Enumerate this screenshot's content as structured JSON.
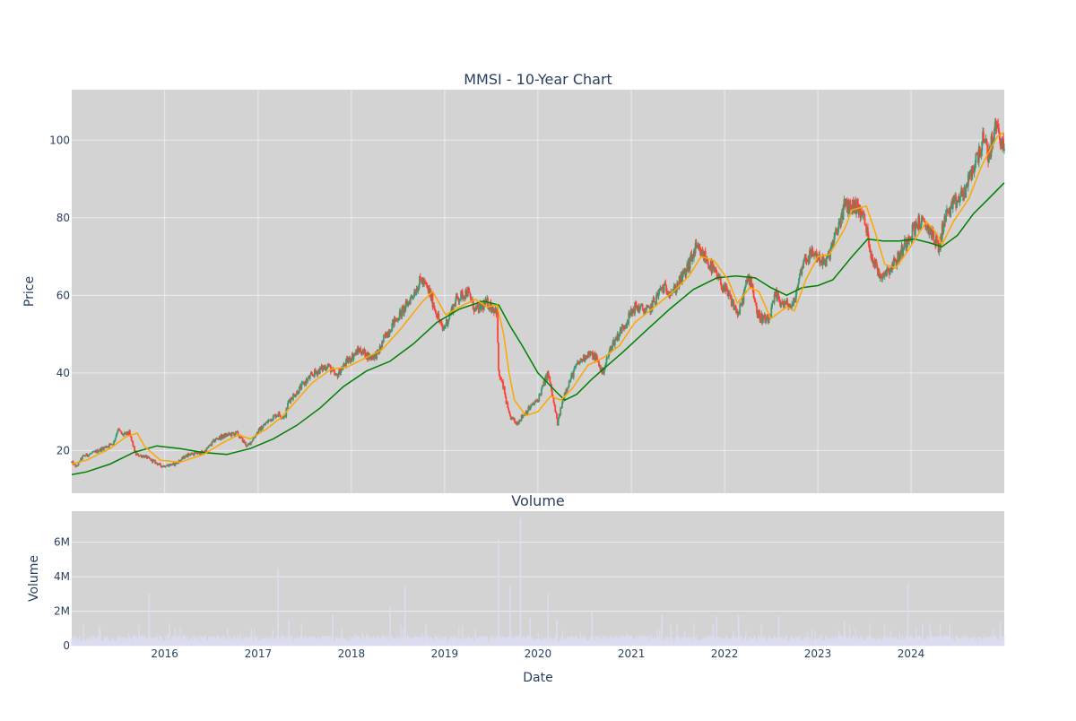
{
  "colors": {
    "plot_bg": "#d3d3d3",
    "grid": "#eaeaf2",
    "increasing": "#3d9970",
    "decreasing": "#ff4136",
    "ma_short": "#ffa500",
    "ma_long": "#008000",
    "volume": "#dcdcf0",
    "text": "#2a3f5f"
  },
  "chart_data": [
    {
      "type": "candlestick",
      "title": "MMSI - 10-Year Chart",
      "ylabel": "Price",
      "xlim": [
        "2015-01-02",
        "2024-12-31"
      ],
      "ylim": [
        9,
        113
      ],
      "ytick_values": [
        20,
        40,
        60,
        80,
        100
      ],
      "ytick_labels": [
        "20",
        "40",
        "60",
        "80",
        "100"
      ],
      "xtick_values": [
        "2016-01-01",
        "2017-01-01",
        "2018-01-01",
        "2019-01-01",
        "2020-01-01",
        "2021-01-01",
        "2022-01-01",
        "2023-01-01",
        "2024-01-01"
      ],
      "grid": true,
      "legend": "none",
      "price_path": [
        [
          "2015-01-02",
          17
        ],
        [
          "2015-01-20",
          15.8
        ],
        [
          "2015-02-15",
          18.5
        ],
        [
          "2015-04-01",
          19.5
        ],
        [
          "2015-05-01",
          20.5
        ],
        [
          "2015-06-15",
          22
        ],
        [
          "2015-07-01",
          25.5
        ],
        [
          "2015-07-20",
          24
        ],
        [
          "2015-08-15",
          24.5
        ],
        [
          "2015-09-10",
          19
        ],
        [
          "2015-10-15",
          18.5
        ],
        [
          "2015-12-20",
          16
        ],
        [
          "2016-02-10",
          16.5
        ],
        [
          "2016-04-01",
          19
        ],
        [
          "2016-06-01",
          19.5
        ],
        [
          "2016-07-20",
          23
        ],
        [
          "2016-09-01",
          24
        ],
        [
          "2016-10-10",
          24.5
        ],
        [
          "2016-11-20",
          21
        ],
        [
          "2017-01-01",
          25
        ],
        [
          "2017-02-15",
          28
        ],
        [
          "2017-03-20",
          29.5
        ],
        [
          "2017-04-15",
          28.5
        ],
        [
          "2017-05-01",
          33
        ],
        [
          "2017-06-01",
          35
        ],
        [
          "2017-07-01",
          37.5
        ],
        [
          "2017-08-10",
          40
        ],
        [
          "2017-10-01",
          42
        ],
        [
          "2017-11-01",
          39
        ],
        [
          "2017-12-15",
          43
        ],
        [
          "2018-02-01",
          46
        ],
        [
          "2018-03-15",
          44
        ],
        [
          "2018-04-15",
          45
        ],
        [
          "2018-05-10",
          49
        ],
        [
          "2018-06-15",
          53
        ],
        [
          "2018-08-01",
          57
        ],
        [
          "2018-10-01",
          64
        ],
        [
          "2018-11-01",
          61
        ],
        [
          "2018-12-24",
          51
        ],
        [
          "2019-01-15",
          54
        ],
        [
          "2019-02-15",
          59
        ],
        [
          "2019-04-01",
          61
        ],
        [
          "2019-05-01",
          56
        ],
        [
          "2019-06-15",
          58
        ],
        [
          "2019-07-25",
          56
        ],
        [
          "2019-07-31",
          40
        ],
        [
          "2019-08-20",
          36
        ],
        [
          "2019-09-10",
          29
        ],
        [
          "2019-10-10",
          27
        ],
        [
          "2019-11-15",
          30
        ],
        [
          "2019-12-31",
          33
        ],
        [
          "2020-02-10",
          40
        ],
        [
          "2020-03-18",
          27
        ],
        [
          "2020-04-15",
          35
        ],
        [
          "2020-06-01",
          42
        ],
        [
          "2020-07-15",
          45
        ],
        [
          "2020-08-15",
          44
        ],
        [
          "2020-09-10",
          40
        ],
        [
          "2020-10-15",
          47
        ],
        [
          "2020-12-01",
          52
        ],
        [
          "2021-01-15",
          57
        ],
        [
          "2021-03-10",
          56
        ],
        [
          "2021-05-01",
          62
        ],
        [
          "2021-06-15",
          61
        ],
        [
          "2021-08-01",
          66
        ],
        [
          "2021-09-10",
          72
        ],
        [
          "2021-10-15",
          70
        ],
        [
          "2021-11-30",
          65
        ],
        [
          "2022-01-15",
          60
        ],
        [
          "2022-02-25",
          55
        ],
        [
          "2022-03-31",
          64
        ],
        [
          "2022-04-15",
          64
        ],
        [
          "2022-05-10",
          55
        ],
        [
          "2022-06-20",
          53
        ],
        [
          "2022-07-20",
          60
        ],
        [
          "2022-08-15",
          58
        ],
        [
          "2022-09-25",
          57
        ],
        [
          "2022-11-05",
          69
        ],
        [
          "2022-12-15",
          71
        ],
        [
          "2023-01-31",
          68
        ],
        [
          "2023-03-10",
          75
        ],
        [
          "2023-04-15",
          83
        ],
        [
          "2023-06-01",
          83
        ],
        [
          "2023-06-30",
          80
        ],
        [
          "2023-08-01",
          70
        ],
        [
          "2023-09-01",
          65
        ],
        [
          "2023-10-10",
          67
        ],
        [
          "2023-11-15",
          70
        ],
        [
          "2023-12-20",
          75
        ],
        [
          "2024-02-01",
          79
        ],
        [
          "2024-03-15",
          77
        ],
        [
          "2024-04-20",
          72
        ],
        [
          "2024-05-10",
          80
        ],
        [
          "2024-06-15",
          83
        ],
        [
          "2024-07-31",
          87
        ],
        [
          "2024-09-01",
          93
        ],
        [
          "2024-10-10",
          100
        ],
        [
          "2024-10-31",
          96
        ],
        [
          "2024-11-30",
          104
        ],
        [
          "2024-12-15",
          101
        ],
        [
          "2024-12-31",
          97
        ]
      ],
      "ma_short_path": [
        [
          "2015-01-02",
          16.5
        ],
        [
          "2015-03-01",
          17.5
        ],
        [
          "2015-06-01",
          20.5
        ],
        [
          "2015-08-01",
          23.5
        ],
        [
          "2015-09-15",
          24.5
        ],
        [
          "2015-10-15",
          21
        ],
        [
          "2015-12-15",
          17.5
        ],
        [
          "2016-03-01",
          17
        ],
        [
          "2016-06-01",
          19
        ],
        [
          "2016-08-15",
          22
        ],
        [
          "2016-10-15",
          24
        ],
        [
          "2016-12-01",
          23
        ],
        [
          "2017-02-01",
          25.5
        ],
        [
          "2017-04-01",
          28.5
        ],
        [
          "2017-06-01",
          33
        ],
        [
          "2017-08-01",
          37.5
        ],
        [
          "2017-10-15",
          41
        ],
        [
          "2017-12-15",
          41.5
        ],
        [
          "2018-03-01",
          44
        ],
        [
          "2018-05-01",
          46
        ],
        [
          "2018-07-15",
          51.5
        ],
        [
          "2018-10-01",
          58
        ],
        [
          "2018-11-15",
          61
        ],
        [
          "2019-01-05",
          55
        ],
        [
          "2019-03-01",
          57
        ],
        [
          "2019-05-01",
          59
        ],
        [
          "2019-06-15",
          57
        ],
        [
          "2019-07-25",
          57.5
        ],
        [
          "2019-08-20",
          50
        ],
        [
          "2019-09-10",
          40
        ],
        [
          "2019-10-01",
          33
        ],
        [
          "2019-11-15",
          29
        ],
        [
          "2020-01-01",
          30
        ],
        [
          "2020-02-20",
          34
        ],
        [
          "2020-04-01",
          33
        ],
        [
          "2020-05-15",
          36
        ],
        [
          "2020-07-15",
          42
        ],
        [
          "2020-09-15",
          44
        ],
        [
          "2020-11-15",
          47
        ],
        [
          "2021-01-15",
          53
        ],
        [
          "2021-04-01",
          57
        ],
        [
          "2021-06-15",
          61
        ],
        [
          "2021-08-15",
          65
        ],
        [
          "2021-10-01",
          70
        ],
        [
          "2021-11-20",
          69
        ],
        [
          "2022-01-15",
          64
        ],
        [
          "2022-02-20",
          58
        ],
        [
          "2022-04-10",
          62
        ],
        [
          "2022-05-15",
          61
        ],
        [
          "2022-07-01",
          54
        ],
        [
          "2022-09-01",
          57
        ],
        [
          "2022-10-01",
          56
        ],
        [
          "2022-11-15",
          64
        ],
        [
          "2023-01-01",
          70
        ],
        [
          "2023-02-15",
          70.5
        ],
        [
          "2023-04-15",
          77
        ],
        [
          "2023-05-15",
          82
        ],
        [
          "2023-07-10",
          83
        ],
        [
          "2023-08-15",
          76
        ],
        [
          "2023-09-20",
          68
        ],
        [
          "2023-11-01",
          67
        ],
        [
          "2023-12-15",
          71
        ],
        [
          "2024-02-01",
          76
        ],
        [
          "2024-03-01",
          79
        ],
        [
          "2024-04-10",
          76
        ],
        [
          "2024-05-01",
          73
        ],
        [
          "2024-06-15",
          79
        ],
        [
          "2024-08-15",
          85
        ],
        [
          "2024-10-01",
          93
        ],
        [
          "2024-11-01",
          97
        ],
        [
          "2024-12-05",
          101
        ],
        [
          "2024-12-31",
          102
        ]
      ],
      "ma_long_path": [
        [
          "2015-01-02",
          13.8
        ],
        [
          "2015-03-01",
          14.5
        ],
        [
          "2015-06-01",
          16.5
        ],
        [
          "2015-09-01",
          19.5
        ],
        [
          "2015-12-01",
          21.2
        ],
        [
          "2016-03-01",
          20.5
        ],
        [
          "2016-06-01",
          19.5
        ],
        [
          "2016-09-01",
          19
        ],
        [
          "2016-12-01",
          20.5
        ],
        [
          "2017-03-01",
          23
        ],
        [
          "2017-06-01",
          26.5
        ],
        [
          "2017-09-01",
          31
        ],
        [
          "2017-12-01",
          36.5
        ],
        [
          "2018-03-01",
          40.5
        ],
        [
          "2018-06-01",
          43
        ],
        [
          "2018-09-01",
          47.5
        ],
        [
          "2018-12-01",
          53
        ],
        [
          "2019-03-01",
          56.5
        ],
        [
          "2019-06-01",
          58.5
        ],
        [
          "2019-08-01",
          57.5
        ],
        [
          "2019-09-15",
          52
        ],
        [
          "2019-11-01",
          47
        ],
        [
          "2020-01-01",
          40
        ],
        [
          "2020-03-15",
          35
        ],
        [
          "2020-04-15",
          33
        ],
        [
          "2020-06-01",
          34.5
        ],
        [
          "2020-08-01",
          38.5
        ],
        [
          "2020-10-01",
          42
        ],
        [
          "2020-12-01",
          45.5
        ],
        [
          "2021-03-01",
          51
        ],
        [
          "2021-06-01",
          56.5
        ],
        [
          "2021-09-01",
          61.5
        ],
        [
          "2021-12-01",
          64.5
        ],
        [
          "2022-02-15",
          65
        ],
        [
          "2022-05-01",
          64.5
        ],
        [
          "2022-07-01",
          62
        ],
        [
          "2022-09-01",
          60
        ],
        [
          "2022-11-01",
          62
        ],
        [
          "2023-01-01",
          62.5
        ],
        [
          "2023-03-01",
          64
        ],
        [
          "2023-05-15",
          70
        ],
        [
          "2023-07-15",
          74.5
        ],
        [
          "2023-09-15",
          74
        ],
        [
          "2023-11-15",
          74
        ],
        [
          "2024-01-15",
          74.5
        ],
        [
          "2024-03-15",
          73.5
        ],
        [
          "2024-05-01",
          72.5
        ],
        [
          "2024-07-01",
          75.5
        ],
        [
          "2024-09-01",
          81
        ],
        [
          "2024-11-01",
          85
        ],
        [
          "2024-12-31",
          89
        ]
      ]
    },
    {
      "type": "bar",
      "title": "Volume",
      "xlabel": "Date",
      "ylabel": "Volume",
      "ylim": [
        0,
        7800000
      ],
      "ytick_values": [
        0,
        2000000,
        4000000,
        6000000
      ],
      "ytick_labels": [
        "0",
        "2M",
        "4M",
        "6M"
      ],
      "xtick_values": [
        "2016-01-01",
        "2017-01-01",
        "2018-01-01",
        "2019-01-01",
        "2020-01-01",
        "2021-01-01",
        "2022-01-01",
        "2023-01-01",
        "2024-01-01"
      ],
      "xtick_labels": [
        "2016",
        "2017",
        "2018",
        "2019",
        "2020",
        "2021",
        "2022",
        "2023",
        "2024"
      ],
      "grid": true,
      "typical_volume_range": [
        200000,
        600000
      ],
      "spikes": [
        [
          "2015-04-20",
          1200000
        ],
        [
          "2015-11-01",
          3000000
        ],
        [
          "2016-01-20",
          1300000
        ],
        [
          "2017-03-20",
          4500000
        ],
        [
          "2017-05-01",
          1500000
        ],
        [
          "2017-10-20",
          1800000
        ],
        [
          "2018-06-01",
          2200000
        ],
        [
          "2018-07-30",
          3400000
        ],
        [
          "2018-10-20",
          1200000
        ],
        [
          "2019-07-31",
          6200000
        ],
        [
          "2019-09-15",
          3500000
        ],
        [
          "2019-10-25",
          7400000
        ],
        [
          "2019-12-01",
          1600000
        ],
        [
          "2020-02-10",
          3000000
        ],
        [
          "2020-03-15",
          1500000
        ],
        [
          "2020-07-31",
          2000000
        ],
        [
          "2021-05-01",
          1800000
        ],
        [
          "2021-12-01",
          1700000
        ],
        [
          "2022-02-25",
          1800000
        ],
        [
          "2022-08-01",
          1700000
        ],
        [
          "2023-04-15",
          1400000
        ],
        [
          "2023-12-20",
          3600000
        ],
        [
          "2024-02-15",
          1200000
        ],
        [
          "2024-06-01",
          1300000
        ],
        [
          "2024-12-15",
          1400000
        ]
      ]
    }
  ]
}
